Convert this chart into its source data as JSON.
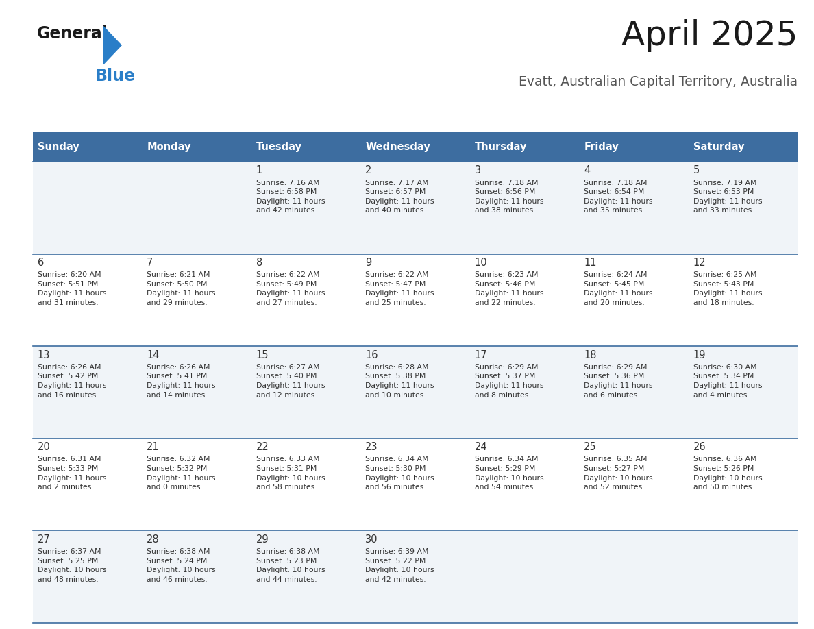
{
  "title": "April 2025",
  "subtitle": "Evatt, Australian Capital Territory, Australia",
  "header_bg_color": "#3d6da0",
  "header_text_color": "#ffffff",
  "cell_bg_even": "#f0f4f8",
  "cell_bg_odd": "#ffffff",
  "separator_color": "#3d6da0",
  "text_color": "#333333",
  "days_of_week": [
    "Sunday",
    "Monday",
    "Tuesday",
    "Wednesday",
    "Thursday",
    "Friday",
    "Saturday"
  ],
  "weeks": [
    [
      {
        "day": "",
        "info": ""
      },
      {
        "day": "",
        "info": ""
      },
      {
        "day": "1",
        "info": "Sunrise: 7:16 AM\nSunset: 6:58 PM\nDaylight: 11 hours\nand 42 minutes."
      },
      {
        "day": "2",
        "info": "Sunrise: 7:17 AM\nSunset: 6:57 PM\nDaylight: 11 hours\nand 40 minutes."
      },
      {
        "day": "3",
        "info": "Sunrise: 7:18 AM\nSunset: 6:56 PM\nDaylight: 11 hours\nand 38 minutes."
      },
      {
        "day": "4",
        "info": "Sunrise: 7:18 AM\nSunset: 6:54 PM\nDaylight: 11 hours\nand 35 minutes."
      },
      {
        "day": "5",
        "info": "Sunrise: 7:19 AM\nSunset: 6:53 PM\nDaylight: 11 hours\nand 33 minutes."
      }
    ],
    [
      {
        "day": "6",
        "info": "Sunrise: 6:20 AM\nSunset: 5:51 PM\nDaylight: 11 hours\nand 31 minutes."
      },
      {
        "day": "7",
        "info": "Sunrise: 6:21 AM\nSunset: 5:50 PM\nDaylight: 11 hours\nand 29 minutes."
      },
      {
        "day": "8",
        "info": "Sunrise: 6:22 AM\nSunset: 5:49 PM\nDaylight: 11 hours\nand 27 minutes."
      },
      {
        "day": "9",
        "info": "Sunrise: 6:22 AM\nSunset: 5:47 PM\nDaylight: 11 hours\nand 25 minutes."
      },
      {
        "day": "10",
        "info": "Sunrise: 6:23 AM\nSunset: 5:46 PM\nDaylight: 11 hours\nand 22 minutes."
      },
      {
        "day": "11",
        "info": "Sunrise: 6:24 AM\nSunset: 5:45 PM\nDaylight: 11 hours\nand 20 minutes."
      },
      {
        "day": "12",
        "info": "Sunrise: 6:25 AM\nSunset: 5:43 PM\nDaylight: 11 hours\nand 18 minutes."
      }
    ],
    [
      {
        "day": "13",
        "info": "Sunrise: 6:26 AM\nSunset: 5:42 PM\nDaylight: 11 hours\nand 16 minutes."
      },
      {
        "day": "14",
        "info": "Sunrise: 6:26 AM\nSunset: 5:41 PM\nDaylight: 11 hours\nand 14 minutes."
      },
      {
        "day": "15",
        "info": "Sunrise: 6:27 AM\nSunset: 5:40 PM\nDaylight: 11 hours\nand 12 minutes."
      },
      {
        "day": "16",
        "info": "Sunrise: 6:28 AM\nSunset: 5:38 PM\nDaylight: 11 hours\nand 10 minutes."
      },
      {
        "day": "17",
        "info": "Sunrise: 6:29 AM\nSunset: 5:37 PM\nDaylight: 11 hours\nand 8 minutes."
      },
      {
        "day": "18",
        "info": "Sunrise: 6:29 AM\nSunset: 5:36 PM\nDaylight: 11 hours\nand 6 minutes."
      },
      {
        "day": "19",
        "info": "Sunrise: 6:30 AM\nSunset: 5:34 PM\nDaylight: 11 hours\nand 4 minutes."
      }
    ],
    [
      {
        "day": "20",
        "info": "Sunrise: 6:31 AM\nSunset: 5:33 PM\nDaylight: 11 hours\nand 2 minutes."
      },
      {
        "day": "21",
        "info": "Sunrise: 6:32 AM\nSunset: 5:32 PM\nDaylight: 11 hours\nand 0 minutes."
      },
      {
        "day": "22",
        "info": "Sunrise: 6:33 AM\nSunset: 5:31 PM\nDaylight: 10 hours\nand 58 minutes."
      },
      {
        "day": "23",
        "info": "Sunrise: 6:34 AM\nSunset: 5:30 PM\nDaylight: 10 hours\nand 56 minutes."
      },
      {
        "day": "24",
        "info": "Sunrise: 6:34 AM\nSunset: 5:29 PM\nDaylight: 10 hours\nand 54 minutes."
      },
      {
        "day": "25",
        "info": "Sunrise: 6:35 AM\nSunset: 5:27 PM\nDaylight: 10 hours\nand 52 minutes."
      },
      {
        "day": "26",
        "info": "Sunrise: 6:36 AM\nSunset: 5:26 PM\nDaylight: 10 hours\nand 50 minutes."
      }
    ],
    [
      {
        "day": "27",
        "info": "Sunrise: 6:37 AM\nSunset: 5:25 PM\nDaylight: 10 hours\nand 48 minutes."
      },
      {
        "day": "28",
        "info": "Sunrise: 6:38 AM\nSunset: 5:24 PM\nDaylight: 10 hours\nand 46 minutes."
      },
      {
        "day": "29",
        "info": "Sunrise: 6:38 AM\nSunset: 5:23 PM\nDaylight: 10 hours\nand 44 minutes."
      },
      {
        "day": "30",
        "info": "Sunrise: 6:39 AM\nSunset: 5:22 PM\nDaylight: 10 hours\nand 42 minutes."
      },
      {
        "day": "",
        "info": ""
      },
      {
        "day": "",
        "info": ""
      },
      {
        "day": "",
        "info": ""
      }
    ]
  ],
  "logo_text_general": "General",
  "logo_text_blue": "Blue",
  "logo_color_general": "#1a1a1a",
  "logo_color_blue": "#2a7ec8"
}
